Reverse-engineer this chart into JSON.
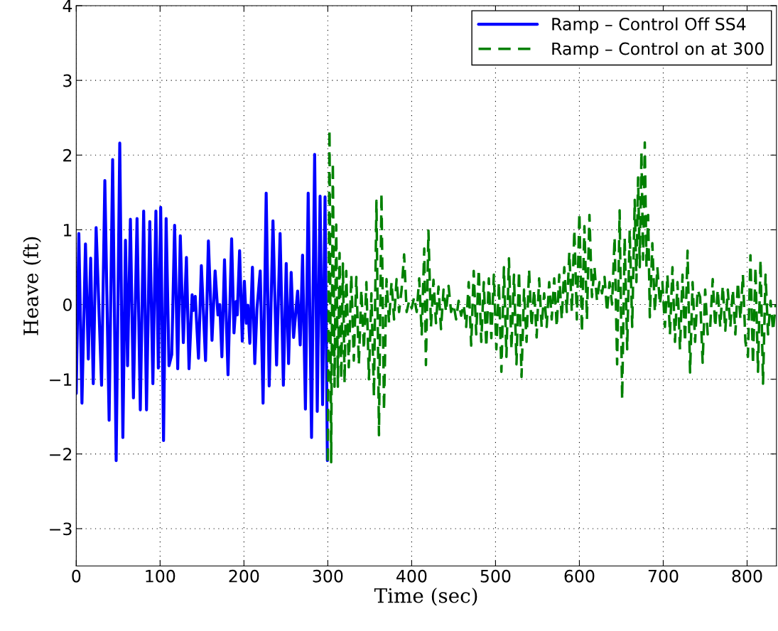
{
  "chart_data": {
    "type": "line",
    "xlabel": "Time (sec)",
    "ylabel": "Heave (ft)",
    "xlim": [
      0,
      835
    ],
    "ylim": [
      -3.5,
      4
    ],
    "xticks": [
      0,
      100,
      200,
      300,
      400,
      500,
      600,
      700,
      800
    ],
    "yticks": [
      -3,
      -2,
      -1,
      0,
      1,
      2,
      3,
      4
    ],
    "grid": true,
    "legend": "top right",
    "series": [
      {
        "name": "Ramp – Control Off SS4",
        "color": "#0000ff",
        "line_style": "solid",
        "x": [
          0,
          3.1,
          6.8,
          11.0,
          14.4,
          17.2,
          20.3,
          23.7,
          27.4,
          30.2,
          34.1,
          39.2,
          43.4,
          47.6,
          51.9,
          55.6,
          58.7,
          61.2,
          64.6,
          68.2,
          72.5,
          76.4,
          80.4,
          83.8,
          87.7,
          91.4,
          95.0,
          97.9,
          100.7,
          104.1,
          107.2,
          110.6,
          113.9,
          117.3,
          121.0,
          124.1,
          127.7,
          131.4,
          134.5,
          138.2,
          139.6,
          141.9,
          145.8,
          149.2,
          154.2,
          157.6,
          161.9,
          165.6,
          169.0,
          171.2,
          173.7,
          176.8,
          181.0,
          185.3,
          188.1,
          190.6,
          192.0,
          194.8,
          198.0,
          200.5,
          202.8,
          204.7,
          207.0,
          210.1,
          212.9,
          215.5,
          219.4,
          222.8,
          226.5,
          230.1,
          234.6,
          238.9,
          243.1,
          247.0,
          250.4,
          253.2,
          256.3,
          259.2,
          264.0,
          267.1,
          269.9,
          273.3,
          276.6,
          280.6,
          284.3,
          287.4,
          290.8,
          293.8,
          296.7,
          299.5
        ],
        "values": [
          -1.19,
          0.95,
          -1.32,
          0.81,
          -0.73,
          0.62,
          -1.06,
          1.03,
          -0.17,
          -1.08,
          1.66,
          -1.55,
          1.94,
          -2.09,
          2.16,
          -1.78,
          0.86,
          -0.82,
          1.14,
          -1.25,
          1.15,
          -1.41,
          1.25,
          -1.41,
          1.11,
          -1.06,
          1.25,
          -0.85,
          1.3,
          -1.82,
          1.15,
          -0.82,
          -0.67,
          1.06,
          -0.86,
          0.92,
          -0.51,
          0.63,
          -0.86,
          0.13,
          -0.08,
          0.11,
          -0.72,
          0.52,
          -0.75,
          0.85,
          -0.48,
          0.45,
          -0.14,
          0.0,
          -0.7,
          0.6,
          -0.94,
          0.88,
          -0.38,
          0.04,
          -0.14,
          0.72,
          -0.49,
          0.31,
          -0.25,
          -0.01,
          -0.52,
          0.5,
          -0.79,
          -0.06,
          0.45,
          -1.32,
          1.49,
          -1.09,
          1.12,
          -0.81,
          0.95,
          -1.08,
          0.55,
          -0.79,
          0.43,
          -0.44,
          0.18,
          -0.54,
          0.66,
          -1.4,
          1.49,
          -1.78,
          2.01,
          -1.43,
          1.45,
          -1.34,
          1.44,
          -2.09
        ]
      },
      {
        "name": "Ramp – Control on at 300",
        "color": "#008000",
        "line_style": "dashed",
        "x": [
          300,
          302,
          304,
          306,
          308,
          310,
          312,
          314,
          316,
          318,
          320,
          322,
          325,
          328,
          331,
          334,
          337,
          340,
          343,
          346,
          349,
          352,
          355,
          358,
          361,
          364,
          367,
          370,
          373,
          376,
          379,
          382,
          385,
          388,
          391,
          394,
          397,
          400,
          403,
          406,
          409,
          412,
          415,
          417,
          420,
          423,
          426,
          429,
          432,
          435,
          438,
          441,
          444,
          447,
          450,
          453,
          456,
          459,
          462,
          465,
          468,
          471,
          474,
          477,
          480,
          483,
          486,
          489,
          492,
          495,
          498,
          501,
          504,
          507,
          510,
          513,
          516,
          519,
          522,
          525,
          528,
          531,
          534,
          537,
          540,
          543,
          546,
          549,
          552,
          555,
          558,
          561,
          564,
          567,
          570,
          573,
          576,
          579,
          582,
          585,
          588,
          591,
          594,
          597,
          600,
          603,
          606,
          609,
          612,
          615,
          618,
          621,
          624,
          627,
          630,
          633,
          636,
          639,
          642,
          645,
          648,
          651,
          654,
          657,
          660,
          663,
          666,
          668,
          670,
          672,
          674,
          676,
          678,
          680,
          682,
          684,
          687,
          690,
          693,
          696,
          699,
          702,
          705,
          708,
          711,
          714,
          717,
          720,
          723,
          726,
          729,
          732,
          735,
          738,
          741,
          744,
          747,
          750,
          753,
          756,
          759,
          762,
          765,
          768,
          771,
          774,
          777,
          780,
          783,
          786,
          789,
          792,
          795,
          798,
          801,
          804,
          807,
          810,
          813,
          816,
          819,
          822,
          825,
          828,
          831,
          834
        ],
        "values": [
          -2.09,
          2.34,
          -2.11,
          1.9,
          -1.1,
          1.07,
          -1.1,
          0.69,
          -1.0,
          0.55,
          -1.05,
          0.45,
          -0.84,
          0.4,
          -0.75,
          0.37,
          -0.8,
          0.2,
          -0.6,
          0.3,
          -1.0,
          0.15,
          -1.23,
          1.39,
          -1.75,
          1.49,
          -1.42,
          0.34,
          -0.24,
          0.3,
          -0.2,
          0.34,
          -0.1,
          0.2,
          0.67,
          -0.1,
          0.05,
          -0.05,
          0.1,
          -0.1,
          0.35,
          -0.4,
          0.75,
          -0.81,
          0.99,
          -0.3,
          0.33,
          -0.25,
          0.24,
          -0.33,
          0.2,
          -0.1,
          0.25,
          -0.1,
          0.0,
          -0.2,
          0.05,
          -0.15,
          0.0,
          -0.3,
          0.3,
          -0.55,
          0.45,
          -0.4,
          0.47,
          -0.5,
          0.3,
          -0.57,
          0.35,
          -0.45,
          0.4,
          -0.6,
          0.3,
          -0.9,
          0.5,
          -0.7,
          0.62,
          -0.6,
          0.4,
          -0.8,
          0.45,
          -0.97,
          0.2,
          -0.5,
          0.47,
          -0.3,
          0.2,
          -0.44,
          0.35,
          -0.3,
          0.15,
          -0.3,
          0.3,
          -0.2,
          0.35,
          -0.3,
          0.4,
          -0.2,
          0.5,
          -0.1,
          0.7,
          -0.1,
          1.0,
          -0.2,
          1.23,
          -0.37,
          1.05,
          -0.2,
          1.2,
          0.1,
          0.5,
          0.05,
          0.3,
          0.15,
          0.37,
          -0.1,
          0.3,
          0.0,
          0.9,
          -0.8,
          1.26,
          -1.27,
          0.9,
          -0.6,
          1.0,
          -0.3,
          1.4,
          0.3,
          1.7,
          0.5,
          2.05,
          0.6,
          2.17,
          0.5,
          1.2,
          -0.17,
          0.82,
          -0.1,
          0.5,
          0.0,
          0.3,
          -0.3,
          0.4,
          -0.4,
          0.5,
          -0.5,
          0.3,
          -0.6,
          0.4,
          -0.5,
          0.72,
          -0.91,
          0.3,
          -0.5,
          0.2,
          0.1,
          -0.78,
          0.2,
          -0.4,
          -0.3,
          0.34,
          -0.3,
          0.2,
          -0.3,
          0.25,
          -0.35,
          0.2,
          -0.3,
          0.2,
          -0.4,
          0.3,
          -0.2,
          0.4,
          -0.5,
          -0.7,
          0.66,
          -0.8,
          0.5,
          -0.9,
          0.6,
          -1.06,
          0.4,
          -0.4,
          0.05,
          -0.35,
          0.0
        ]
      }
    ]
  }
}
